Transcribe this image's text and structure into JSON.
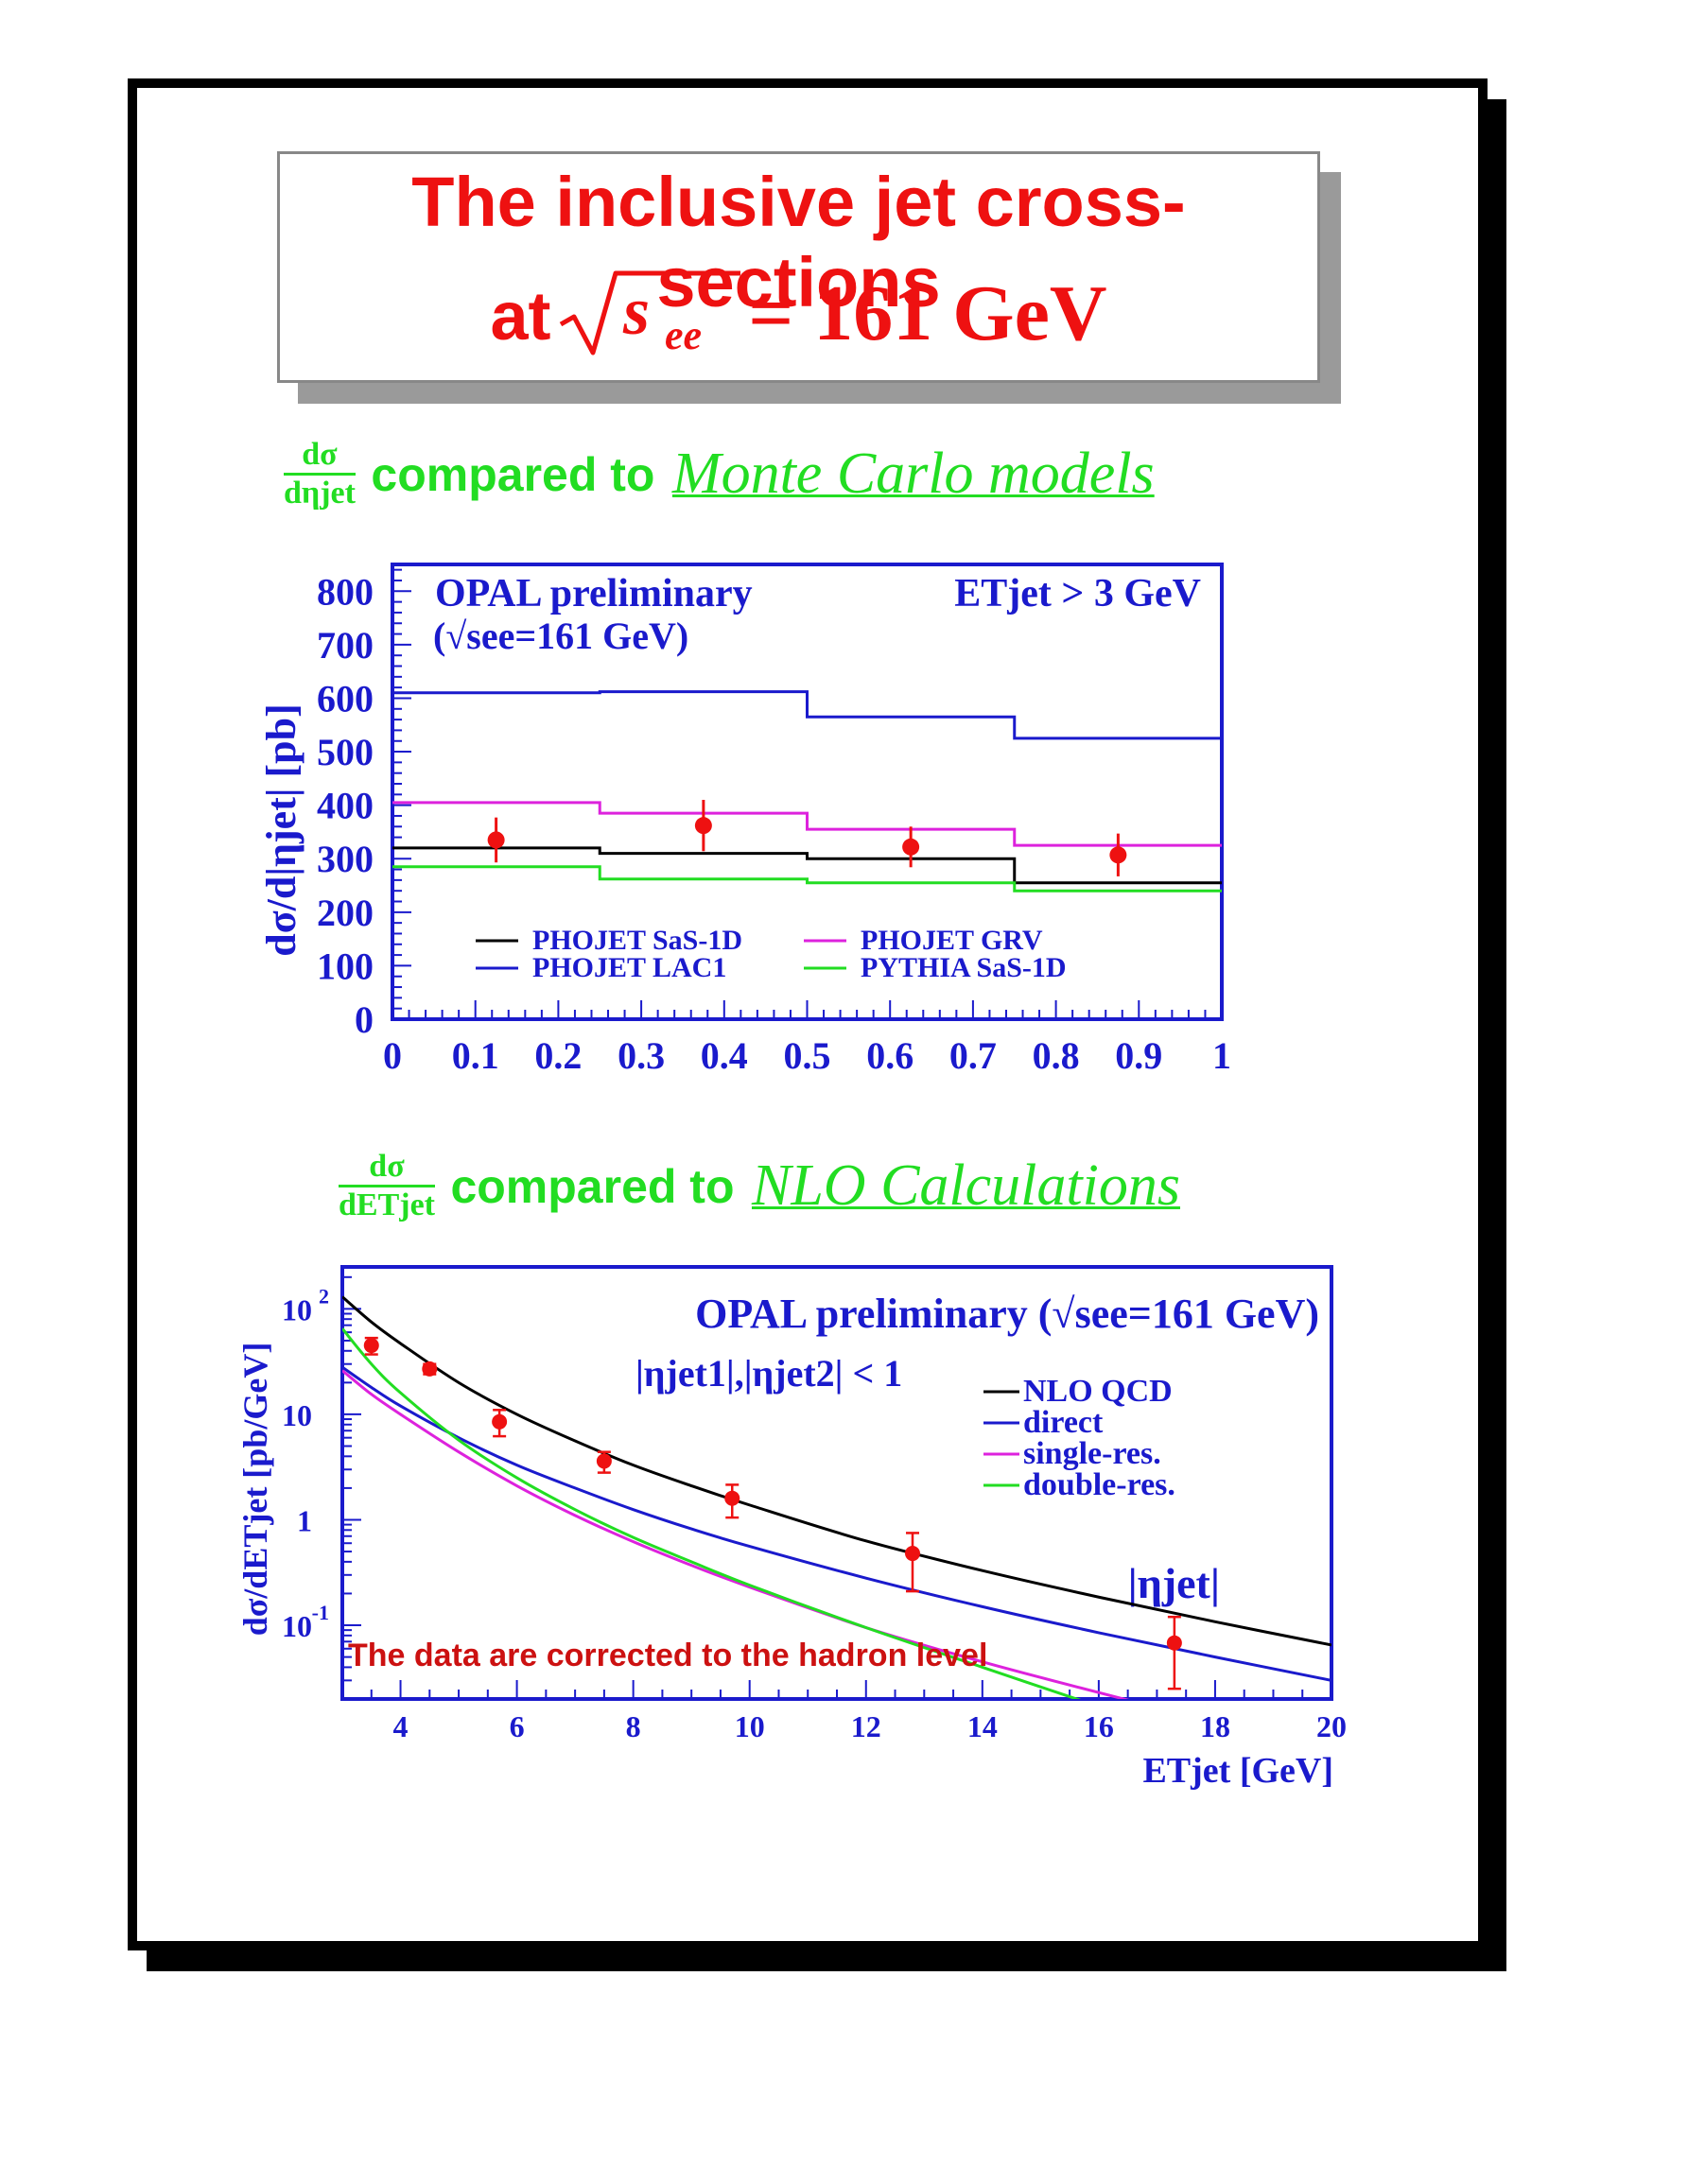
{
  "title": {
    "line1": "The inclusive jet cross-sections",
    "line2_prefix": "at",
    "line2_energy": "= 161 GeV"
  },
  "section1": {
    "fraction_num": "dσ",
    "fraction_den": "dηjet",
    "compared": "compared to",
    "target": "Monte Carlo models"
  },
  "section2": {
    "fraction_num": "dσ",
    "fraction_den": "dETjet",
    "compared": "compared to",
    "target": "NLO Calculations"
  },
  "colors": {
    "title_red": "#ee1111",
    "heading_green": "#22dd22",
    "axis_blue": "#1a1acc",
    "data_red": "#ee1111",
    "black": "#000000",
    "blue": "#1a1acc",
    "magenta": "#dd22dd",
    "green": "#22dd22"
  },
  "chart_data": [
    {
      "type": "line",
      "title": "OPAL preliminary",
      "subtitle": "(√see=161 GeV)",
      "cut_label": "ETjet > 3 GeV",
      "xlabel": "|ηjet|",
      "ylabel": "dσ/d|ηjet| [pb]",
      "xlim": [
        0,
        1
      ],
      "ylim": [
        0,
        850
      ],
      "xticks": [
        "0",
        "0.1",
        "0.2",
        "0.3",
        "0.4",
        "0.5",
        "0.6",
        "0.7",
        "0.8",
        "0.9",
        "1"
      ],
      "yticks": [
        "0",
        "100",
        "200",
        "300",
        "400",
        "500",
        "600",
        "700",
        "800"
      ],
      "bin_edges": [
        0,
        0.25,
        0.5,
        0.75,
        1.0
      ],
      "series": [
        {
          "name": "PHOJET SaS-1D",
          "color": "#000000",
          "style": "histogram",
          "values": [
            320,
            310,
            300,
            255
          ]
        },
        {
          "name": "PHOJET LAC1",
          "color": "#1a1acc",
          "style": "histogram",
          "values": [
            610,
            612,
            565,
            525
          ]
        },
        {
          "name": "PHOJET GRV",
          "color": "#dd22dd",
          "style": "histogram",
          "values": [
            405,
            385,
            355,
            325
          ]
        },
        {
          "name": "PYTHIA SaS-1D",
          "color": "#22dd22",
          "style": "histogram",
          "values": [
            285,
            262,
            255,
            240
          ]
        }
      ],
      "data": {
        "x": [
          0.125,
          0.375,
          0.625,
          0.875
        ],
        "y": [
          335,
          362,
          322,
          307
        ],
        "yerr": [
          42,
          48,
          38,
          40
        ]
      },
      "legend": "bottom"
    },
    {
      "type": "line",
      "title": "OPAL preliminary (√see=161 GeV)",
      "cut_label": "|ηjet1|,|ηjet2| < 1",
      "note": "The data are corrected to the hadron level",
      "xlabel": "ETjet [GeV]",
      "ylabel": "dσ/dETjet [pb/GeV]",
      "yscale": "log",
      "xlim": [
        3,
        20
      ],
      "ylim": [
        0.02,
        250
      ],
      "xticks": [
        "4",
        "6",
        "8",
        "10",
        "12",
        "14",
        "16",
        "18",
        "20"
      ],
      "series": [
        {
          "name": "NLO QCD",
          "color": "#000000",
          "x": [
            3,
            3.5,
            4,
            5,
            6,
            7,
            8,
            9,
            10,
            12,
            14,
            16,
            18,
            20
          ],
          "y": [
            130,
            75,
            47,
            20,
            10,
            5.6,
            3.3,
            2.1,
            1.38,
            0.63,
            0.33,
            0.185,
            0.108,
            0.065
          ]
        },
        {
          "name": "direct",
          "color": "#1a1acc",
          "x": [
            3,
            3.5,
            4,
            5,
            6,
            7,
            8,
            9,
            10,
            12,
            14,
            16,
            18,
            20
          ],
          "y": [
            28,
            18,
            12,
            6,
            3.3,
            2,
            1.25,
            0.82,
            0.56,
            0.28,
            0.15,
            0.085,
            0.05,
            0.03
          ]
        },
        {
          "name": "single-res.",
          "color": "#dd22dd",
          "x": [
            3,
            3.5,
            4,
            5,
            6,
            7,
            8,
            9,
            10,
            12,
            14,
            16,
            18
          ],
          "y": [
            26,
            15.5,
            10,
            4.4,
            2.1,
            1.1,
            0.62,
            0.37,
            0.23,
            0.095,
            0.045,
            0.023,
            0.012
          ]
        },
        {
          "name": "double-res.",
          "color": "#22dd22",
          "x": [
            3,
            3.5,
            4,
            5,
            6,
            7,
            8,
            9,
            10,
            12,
            14,
            16,
            17.3
          ],
          "y": [
            65,
            30,
            16,
            5.7,
            2.5,
            1.25,
            0.68,
            0.4,
            0.24,
            0.095,
            0.04,
            0.017,
            0.01
          ]
        }
      ],
      "data": {
        "x": [
          3.5,
          4.5,
          5.7,
          7.5,
          9.7,
          12.8,
          17.3
        ],
        "y": [
          45,
          27,
          8.5,
          3.6,
          1.6,
          0.48,
          0.068
        ],
        "ylow": [
          37,
          24,
          6.2,
          2.8,
          1.05,
          0.21,
          0.025
        ],
        "yhigh": [
          53,
          30,
          11,
          4.4,
          2.15,
          0.75,
          0.12
        ]
      },
      "legend": "top-right"
    }
  ]
}
